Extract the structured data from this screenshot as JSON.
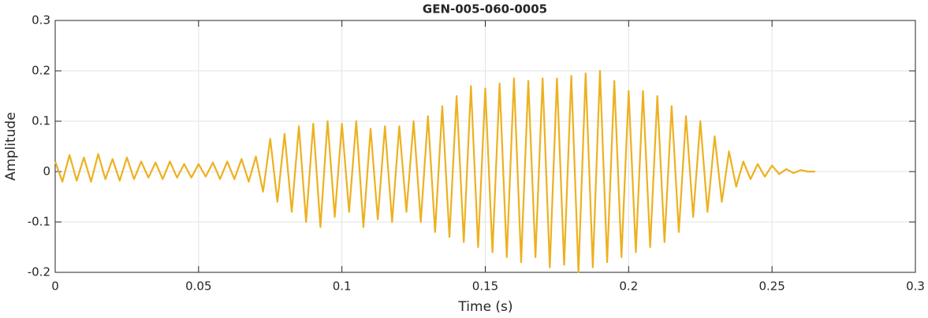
{
  "chart_data": {
    "type": "line",
    "title": "GEN-005-060-0005",
    "xlabel": "Time (s)",
    "ylabel": "Amplitude",
    "x": [
      0,
      0.0025,
      0.005,
      0.0075,
      0.01,
      0.0125,
      0.015,
      0.0175,
      0.02,
      0.0225,
      0.025,
      0.0275,
      0.03,
      0.0325,
      0.035,
      0.0375,
      0.04,
      0.0425,
      0.045,
      0.0475,
      0.05,
      0.0525,
      0.055,
      0.0575,
      0.06,
      0.0625,
      0.065,
      0.0675,
      0.07,
      0.0725,
      0.075,
      0.0775,
      0.08,
      0.0825,
      0.085,
      0.0875,
      0.09,
      0.0925,
      0.095,
      0.0975,
      0.1,
      0.1025,
      0.105,
      0.1075,
      0.11,
      0.1125,
      0.115,
      0.1175,
      0.12,
      0.1225,
      0.125,
      0.1275,
      0.13,
      0.1325,
      0.135,
      0.1375,
      0.14,
      0.1425,
      0.145,
      0.1475,
      0.15,
      0.1525,
      0.155,
      0.1575,
      0.16,
      0.1625,
      0.165,
      0.1675,
      0.17,
      0.1725,
      0.175,
      0.1775,
      0.18,
      0.1825,
      0.185,
      0.1875,
      0.19,
      0.1925,
      0.195,
      0.1975,
      0.2,
      0.2025,
      0.205,
      0.2075,
      0.21,
      0.2125,
      0.215,
      0.2175,
      0.22,
      0.2225,
      0.225,
      0.2275,
      0.23,
      0.2325,
      0.235,
      0.2375,
      0.24,
      0.2425,
      0.245,
      0.2475,
      0.25,
      0.2525,
      0.255,
      0.2575,
      0.26,
      0.2625,
      0.265
    ],
    "values": [
      0.02,
      -0.02,
      0.033,
      -0.018,
      0.028,
      -0.02,
      0.035,
      -0.015,
      0.025,
      -0.018,
      0.028,
      -0.015,
      0.02,
      -0.012,
      0.018,
      -0.015,
      0.02,
      -0.012,
      0.015,
      -0.012,
      0.015,
      -0.01,
      0.018,
      -0.015,
      0.02,
      -0.015,
      0.025,
      -0.02,
      0.03,
      -0.04,
      0.065,
      -0.06,
      0.075,
      -0.08,
      0.09,
      -0.1,
      0.095,
      -0.11,
      0.1,
      -0.09,
      0.095,
      -0.08,
      0.1,
      -0.11,
      0.085,
      -0.095,
      0.09,
      -0.1,
      0.09,
      -0.08,
      0.1,
      -0.1,
      0.11,
      -0.12,
      0.13,
      -0.13,
      0.15,
      -0.14,
      0.17,
      -0.15,
      0.165,
      -0.16,
      0.175,
      -0.17,
      0.185,
      -0.18,
      0.18,
      -0.17,
      0.185,
      -0.19,
      0.185,
      -0.185,
      0.19,
      -0.2,
      0.195,
      -0.19,
      0.2,
      -0.18,
      0.18,
      -0.17,
      0.16,
      -0.16,
      0.16,
      -0.15,
      0.15,
      -0.14,
      0.13,
      -0.12,
      0.11,
      -0.09,
      0.1,
      -0.08,
      0.07,
      -0.06,
      0.04,
      -0.03,
      0.02,
      -0.015,
      0.015,
      -0.01,
      0.012,
      -0.005,
      0.005,
      -0.003,
      0.003,
      0,
      0
    ],
    "color": "#EDB120",
    "xlim": [
      0,
      0.3
    ],
    "ylim": [
      -0.2,
      0.3
    ],
    "xticks": [
      0,
      0.05,
      0.1,
      0.15,
      0.2,
      0.25,
      0.3
    ],
    "yticks": [
      -0.2,
      -0.1,
      0,
      0.1,
      0.2,
      0.3
    ],
    "grid": true
  }
}
